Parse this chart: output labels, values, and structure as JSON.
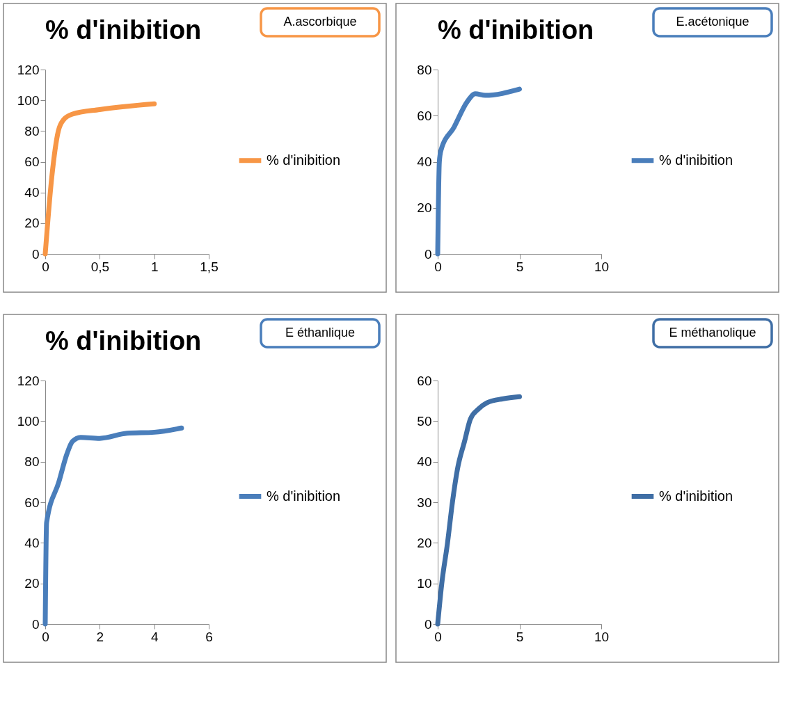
{
  "chart_data": [
    {
      "type": "line",
      "title": "% d'inibition",
      "annotations": [
        "A.ascorbique"
      ],
      "legend": "right",
      "line_style": "solid",
      "series": [
        {
          "name": "% d'inibition",
          "color": "#f79646",
          "x": [
            0,
            0.06,
            0.12,
            0.17,
            0.25,
            0.5,
            1
          ],
          "values": [
            0,
            50,
            80,
            87.5,
            91,
            94,
            97.7
          ]
        }
      ],
      "xlim": [
        0,
        1.5
      ],
      "xticks": [
        0,
        {
          "value": 0.5,
          "label": "0,5"
        },
        1,
        {
          "value": 1.5,
          "label": "1,5"
        }
      ],
      "ylim": [
        0,
        120
      ],
      "yticks": [
        0,
        20,
        40,
        60,
        80,
        100,
        120
      ]
    },
    {
      "type": "line",
      "title": "% d'inibition",
      "annotations": [
        "E.acétonique"
      ],
      "legend": "right",
      "line_style": "solid",
      "series": [
        {
          "name": "% d'inibition",
          "color": "#4a7ebb",
          "x": [
            0,
            0.1,
            0.2,
            1,
            1.8,
            2.3,
            2.9,
            5
          ],
          "values": [
            0,
            40,
            45,
            55,
            66,
            69.5,
            68.8,
            71.5
          ]
        }
      ],
      "xlim": [
        0,
        10
      ],
      "xticks": [
        0,
        5,
        10
      ],
      "ylim": [
        0,
        80
      ],
      "yticks": [
        0,
        20,
        40,
        60,
        80
      ]
    },
    {
      "type": "line",
      "title": "% d'inibition",
      "annotations": [
        "E éthanlique"
      ],
      "legend": "right",
      "line_style": "solid",
      "series": [
        {
          "name": "% d'inibition",
          "color": "#4a7ebb",
          "x": [
            0,
            0.05,
            0.5,
            0.8,
            1,
            1.3,
            2,
            3,
            4,
            5
          ],
          "values": [
            0,
            50,
            70,
            84,
            90,
            92,
            91.5,
            94,
            94.5,
            96.6
          ]
        }
      ],
      "xlim": [
        0,
        6
      ],
      "xticks": [
        0,
        2,
        4,
        6
      ],
      "ylim": [
        0,
        120
      ],
      "yticks": [
        0,
        20,
        40,
        60,
        80,
        100,
        120
      ]
    },
    {
      "type": "line",
      "title": null,
      "annotations": [
        "E méthanolique"
      ],
      "legend": "right",
      "line_style": "solid",
      "series": [
        {
          "name": "% d'inibition",
          "color": "#3f6ea5",
          "x": [
            0,
            0.25,
            0.6,
            0.9,
            1.2,
            1.64,
            2,
            2.5,
            3,
            4,
            5
          ],
          "values": [
            0,
            10,
            20,
            30,
            38,
            45,
            50.5,
            53,
            54.5,
            55.5,
            56
          ]
        }
      ],
      "xlim": [
        0,
        10
      ],
      "xticks": [
        0,
        5,
        10
      ],
      "ylim": [
        0,
        60
      ],
      "yticks": [
        0,
        10,
        20,
        30,
        40,
        50,
        60
      ]
    }
  ]
}
